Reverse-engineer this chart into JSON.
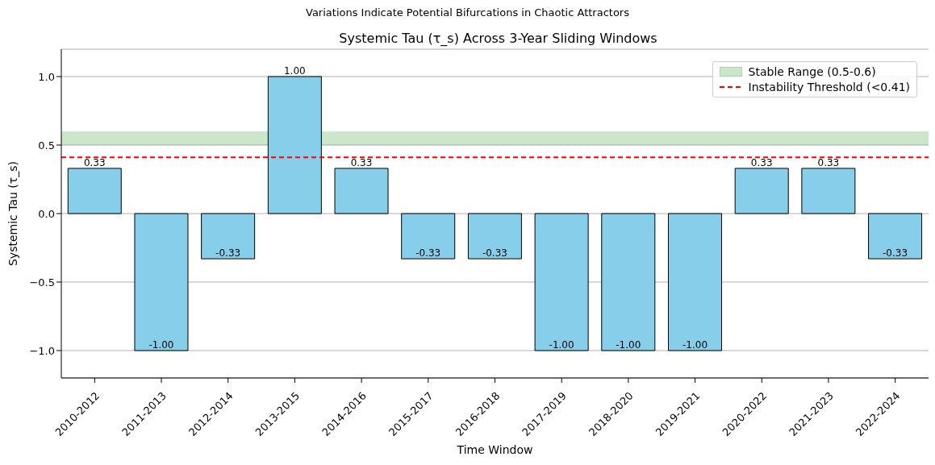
{
  "chart_data": {
    "type": "bar",
    "title": "Systemic Tau (τ_s) Across 3-Year Sliding Windows",
    "subtitle": "Variations Indicate Potential Bifurcations in Chaotic Attractors",
    "xlabel": "Time Window",
    "ylabel": "Systemic Tau (τ_s)",
    "categories": [
      "2010-2012",
      "2011-2013",
      "2012-2014",
      "2013-2015",
      "2014-2016",
      "2015-2017",
      "2016-2018",
      "2017-2019",
      "2018-2020",
      "2019-2021",
      "2020-2022",
      "2021-2023",
      "2022-2024"
    ],
    "values": [
      0.33,
      -1,
      -0.33,
      1,
      0.33,
      -0.33,
      -0.33,
      -1,
      -1,
      -1,
      0.33,
      0.33,
      -0.33
    ],
    "value_labels": [
      "0.33",
      "-1.00",
      "-0.33",
      "1.00",
      "0.33",
      "-0.33",
      "-0.33",
      "-1.00",
      "-1.00",
      "-1.00",
      "0.33",
      "0.33",
      "-0.33"
    ],
    "color": "#87ceeb",
    "ylim": [
      -1.2,
      1.2
    ],
    "yticks": [
      {
        "value": -1,
        "label": "−1.0"
      },
      {
        "value": -0.5,
        "label": "−0.5"
      },
      {
        "value": 0,
        "label": "0.0"
      },
      {
        "value": 0.5,
        "label": "0.5"
      },
      {
        "value": 1,
        "label": "1.0"
      }
    ],
    "grid": "y",
    "legend": "top right",
    "bands": [
      {
        "axis": "y",
        "from": 0.5,
        "to": 0.6,
        "label": "Stable Range (0.5-0.6)",
        "color": "#2ca02c"
      }
    ],
    "ref_lines": [
      {
        "axis": "y",
        "value": 0.41,
        "label": "Instability Threshold (<0.41)",
        "color": "#ff0000",
        "line_style": "dashed"
      }
    ]
  }
}
